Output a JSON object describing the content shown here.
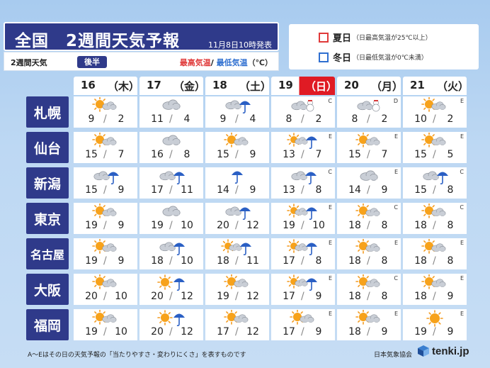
{
  "header": {
    "title": "全国　2週間天気予報",
    "issued": "11月8日10時発表",
    "sub_label": "2週間天気",
    "sub_pill": "後半",
    "legend_high": "最高気温",
    "legend_sep": "/",
    "legend_low": "最低気温",
    "legend_unit": "（℃）"
  },
  "legend": {
    "summer": {
      "name": "夏日",
      "note": "（日最高気温が25℃以上）",
      "color": "#e03a3a"
    },
    "winter": {
      "name": "冬日",
      "note": "（日最低気温が0℃未満）",
      "color": "#2f6fd0"
    }
  },
  "days": [
    {
      "num": "16",
      "name": "（木）"
    },
    {
      "num": "17",
      "name": "（金）"
    },
    {
      "num": "18",
      "name": "（土）"
    },
    {
      "num": "19",
      "name": "（日）",
      "sunday": true
    },
    {
      "num": "20",
      "name": "（月）"
    },
    {
      "num": "21",
      "name": "（火）"
    }
  ],
  "cities": [
    {
      "name": "札幌",
      "days": [
        {
          "wx": "sun-cloud",
          "hi": "9",
          "lo": "2",
          "rel": ""
        },
        {
          "wx": "cloud",
          "hi": "11",
          "lo": "4",
          "rel": ""
        },
        {
          "wx": "cloud-rain",
          "hi": "9",
          "lo": "4",
          "rel": ""
        },
        {
          "wx": "cloud-snow",
          "hi": "8",
          "lo": "2",
          "rel": "C"
        },
        {
          "wx": "cloud-snow",
          "hi": "8",
          "lo": "2",
          "rel": "D"
        },
        {
          "wx": "sun-cloud",
          "hi": "10",
          "lo": "2",
          "rel": "E"
        }
      ]
    },
    {
      "name": "仙台",
      "days": [
        {
          "wx": "sun-cloud",
          "hi": "15",
          "lo": "7",
          "rel": ""
        },
        {
          "wx": "cloud",
          "hi": "16",
          "lo": "8",
          "rel": ""
        },
        {
          "wx": "sun-cloud",
          "hi": "15",
          "lo": "9",
          "rel": ""
        },
        {
          "wx": "sun-cloud-rain",
          "hi": "13",
          "lo": "7",
          "rel": "E"
        },
        {
          "wx": "sun-cloud",
          "hi": "15",
          "lo": "7",
          "rel": "E"
        },
        {
          "wx": "sun-cloud",
          "hi": "15",
          "lo": "5",
          "rel": "E"
        }
      ]
    },
    {
      "name": "新潟",
      "days": [
        {
          "wx": "cloud-rain",
          "hi": "15",
          "lo": "9",
          "rel": ""
        },
        {
          "wx": "cloud-rain",
          "hi": "17",
          "lo": "11",
          "rel": ""
        },
        {
          "wx": "rain",
          "hi": "14",
          "lo": "9",
          "rel": ""
        },
        {
          "wx": "cloud-rain",
          "hi": "13",
          "lo": "8",
          "rel": "C"
        },
        {
          "wx": "cloud",
          "hi": "14",
          "lo": "9",
          "rel": "E"
        },
        {
          "wx": "cloud-rain",
          "hi": "15",
          "lo": "8",
          "rel": "C"
        }
      ]
    },
    {
      "name": "東京",
      "days": [
        {
          "wx": "sun-cloud",
          "hi": "19",
          "lo": "9",
          "rel": ""
        },
        {
          "wx": "cloud",
          "hi": "19",
          "lo": "10",
          "rel": ""
        },
        {
          "wx": "cloud-rain",
          "hi": "20",
          "lo": "12",
          "rel": ""
        },
        {
          "wx": "sun-cloud-rain",
          "hi": "19",
          "lo": "10",
          "rel": "E"
        },
        {
          "wx": "sun-cloud",
          "hi": "18",
          "lo": "8",
          "rel": "C"
        },
        {
          "wx": "sun-cloud",
          "hi": "18",
          "lo": "8",
          "rel": "C"
        }
      ]
    },
    {
      "name": "名古屋",
      "small": true,
      "days": [
        {
          "wx": "sun-cloud",
          "hi": "19",
          "lo": "9",
          "rel": ""
        },
        {
          "wx": "cloud-rain",
          "hi": "18",
          "lo": "10",
          "rel": ""
        },
        {
          "wx": "sun-cloud-rain",
          "hi": "18",
          "lo": "11",
          "rel": ""
        },
        {
          "wx": "sun-cloud-rain",
          "hi": "17",
          "lo": "8",
          "rel": "E"
        },
        {
          "wx": "sun-cloud",
          "hi": "18",
          "lo": "8",
          "rel": "E"
        },
        {
          "wx": "sun-cloud",
          "hi": "18",
          "lo": "8",
          "rel": "E"
        }
      ]
    },
    {
      "name": "大阪",
      "days": [
        {
          "wx": "sun-cloud",
          "hi": "20",
          "lo": "10",
          "rel": ""
        },
        {
          "wx": "sun-rain",
          "hi": "20",
          "lo": "12",
          "rel": ""
        },
        {
          "wx": "sun-cloud",
          "hi": "19",
          "lo": "12",
          "rel": ""
        },
        {
          "wx": "sun-cloud-rain",
          "hi": "17",
          "lo": "9",
          "rel": "E"
        },
        {
          "wx": "sun-cloud",
          "hi": "18",
          "lo": "8",
          "rel": "C"
        },
        {
          "wx": "sun-cloud",
          "hi": "18",
          "lo": "9",
          "rel": "E"
        }
      ]
    },
    {
      "name": "福岡",
      "days": [
        {
          "wx": "sun-cloud",
          "hi": "19",
          "lo": "10",
          "rel": ""
        },
        {
          "wx": "sun-rain",
          "hi": "20",
          "lo": "12",
          "rel": ""
        },
        {
          "wx": "sun-cloud",
          "hi": "17",
          "lo": "12",
          "rel": ""
        },
        {
          "wx": "sun-cloud",
          "hi": "17",
          "lo": "9",
          "rel": "E"
        },
        {
          "wx": "sun-cloud",
          "hi": "18",
          "lo": "9",
          "rel": "E"
        },
        {
          "wx": "sun",
          "hi": "19",
          "lo": "9",
          "rel": "E"
        }
      ]
    }
  ],
  "footer": {
    "note": "A～Eはその日の天気予報の「当たりやすさ・変わりにくさ」を表すものです",
    "org": "日本気象協会",
    "brand": "tenki.jp"
  }
}
